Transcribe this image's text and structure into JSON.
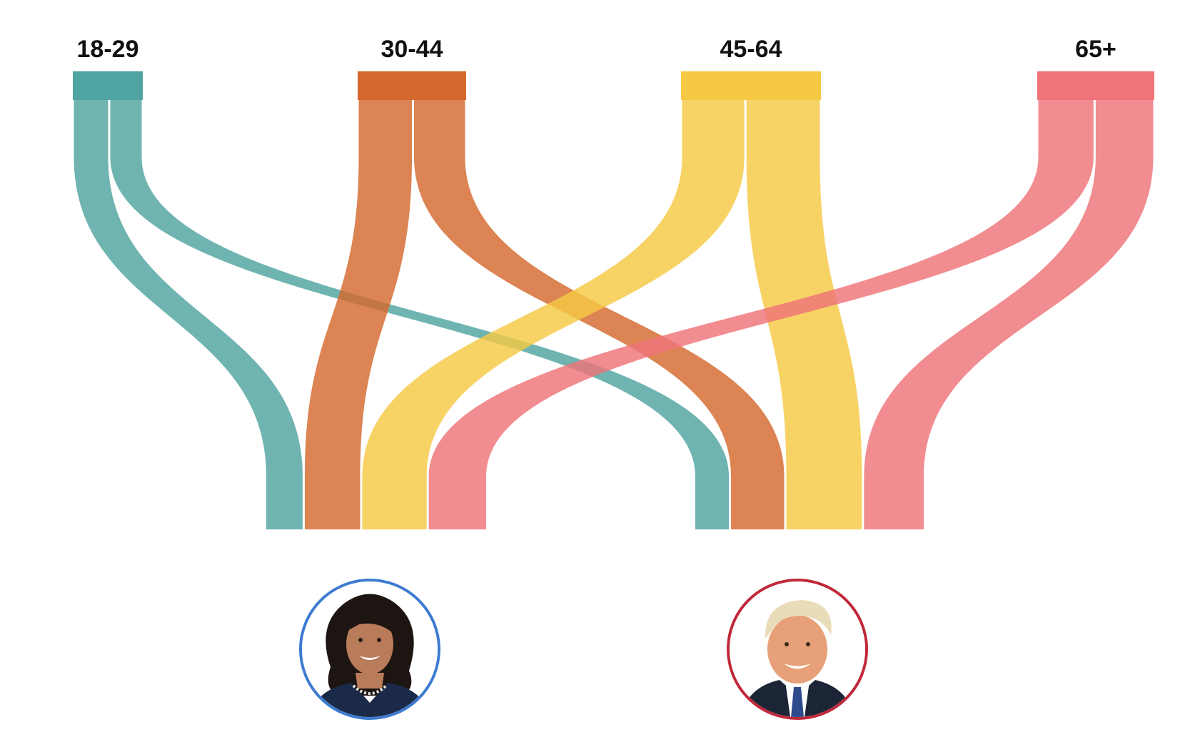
{
  "chart_data": {
    "type": "sankey",
    "title": "",
    "groups": [
      {
        "label": "18-29",
        "color": "#4fa3a0"
      },
      {
        "label": "30-44",
        "color": "#d4692d"
      },
      {
        "label": "45-64",
        "color": "#f5c944"
      },
      {
        "label": "65+",
        "color": "#ee7479"
      }
    ],
    "targets": [
      {
        "name": "",
        "side": "left",
        "ring_color": "#3d7bd1",
        "portrait": "smiling woman, dark shoulder-length hair, navy jacket, pearl necklace"
      },
      {
        "name": "",
        "side": "right",
        "ring_color": "#c0283a",
        "portrait": "smiling man, light hair, navy suit, white shirt, blue tie"
      }
    ],
    "flows": [
      {
        "from": "18-29",
        "to": 0,
        "share": 0.52
      },
      {
        "from": "18-29",
        "to": 1,
        "share": 0.48
      },
      {
        "from": "30-44",
        "to": 0,
        "share": 0.51
      },
      {
        "from": "30-44",
        "to": 1,
        "share": 0.49
      },
      {
        "from": "45-64",
        "to": 0,
        "share": 0.46
      },
      {
        "from": "45-64",
        "to": 1,
        "share": 0.54
      },
      {
        "from": "65+",
        "to": 0,
        "share": 0.49
      },
      {
        "from": "65+",
        "to": 1,
        "share": 0.51
      }
    ]
  }
}
